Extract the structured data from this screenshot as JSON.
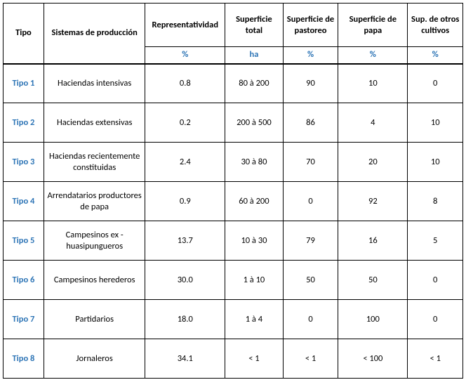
{
  "table": {
    "type": "table",
    "background_color": "#ffffff",
    "border_color": "#000000",
    "accent_color": "#2e75b6",
    "font_family": "Calibri",
    "header_fontsize": 13,
    "cell_fontsize": 12.5,
    "columns": [
      {
        "key": "tipo",
        "label": "Tipo",
        "unit": ""
      },
      {
        "key": "sistemas",
        "label": "Sistemas de producción",
        "unit": ""
      },
      {
        "key": "representatividad",
        "label": "Representatividad",
        "unit": "%"
      },
      {
        "key": "sup_total",
        "label": "Superficie total",
        "unit": "ha"
      },
      {
        "key": "sup_pastoreo",
        "label": "Superficie de pastoreo",
        "unit": "%"
      },
      {
        "key": "sup_papa",
        "label": "Superficie de papa",
        "unit": "%"
      },
      {
        "key": "sup_otros",
        "label": "Sup. de otros cultivos",
        "unit": "%"
      }
    ],
    "rows": [
      {
        "tipo": "Tipo 1",
        "sistemas": "Haciendas intensivas",
        "representatividad": "0.8",
        "sup_total": "80 à 200",
        "sup_pastoreo": "90",
        "sup_papa": "10",
        "sup_otros": "0"
      },
      {
        "tipo": "Tipo 2",
        "sistemas": "Haciendas extensivas",
        "representatividad": "0.2",
        "sup_total": "200 à 500",
        "sup_pastoreo": "86",
        "sup_papa": "4",
        "sup_otros": "10"
      },
      {
        "tipo": "Tipo 3",
        "sistemas": "Haciendas recientemente constituidas",
        "representatividad": "2.4",
        "sup_total": "30 à 80",
        "sup_pastoreo": "70",
        "sup_papa": "20",
        "sup_otros": "10"
      },
      {
        "tipo": "Tipo 4",
        "sistemas": "Arrendatarios productores de papa",
        "representatividad": "0.9",
        "sup_total": "60 à 200",
        "sup_pastoreo": "0",
        "sup_papa": "92",
        "sup_otros": "8"
      },
      {
        "tipo": "Tipo 5",
        "sistemas": "Campesinos ex - huasipungueros",
        "representatividad": "13.7",
        "sup_total": "10 à 30",
        "sup_pastoreo": "79",
        "sup_papa": "16",
        "sup_otros": "5"
      },
      {
        "tipo": "Tipo 6",
        "sistemas": "Campesinos herederos",
        "representatividad": "30.0",
        "sup_total": "1 à 10",
        "sup_pastoreo": "50",
        "sup_papa": "50",
        "sup_otros": "0"
      },
      {
        "tipo": "Tipo 7",
        "sistemas": "Partidarios",
        "representatividad": "18.0",
        "sup_total": "1 à 4",
        "sup_pastoreo": "0",
        "sup_papa": "100",
        "sup_otros": "0"
      },
      {
        "tipo": "Tipo 8",
        "sistemas": "Jornaleros",
        "representatividad": "34.1",
        "sup_total": "< 1",
        "sup_pastoreo": "< 1",
        "sup_papa": "< 100",
        "sup_otros": "< 1"
      }
    ]
  }
}
